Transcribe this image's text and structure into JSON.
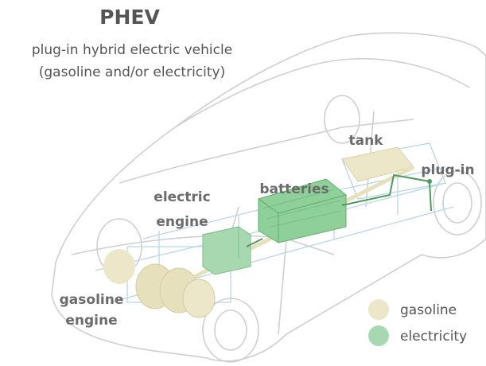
{
  "title": "PHEV",
  "subtitle": [
    "plug-in hybrid electric vehicle",
    "(gasoline and/or electricity)"
  ],
  "labels": {
    "tank": "tank",
    "plug_in": "plug-in",
    "batteries": "batteries",
    "electric_engine": [
      "electric",
      "engine"
    ],
    "gasoline_engine": [
      "gasoline",
      "engine"
    ]
  },
  "legend": [
    "gasoline",
    "electricity"
  ]
}
